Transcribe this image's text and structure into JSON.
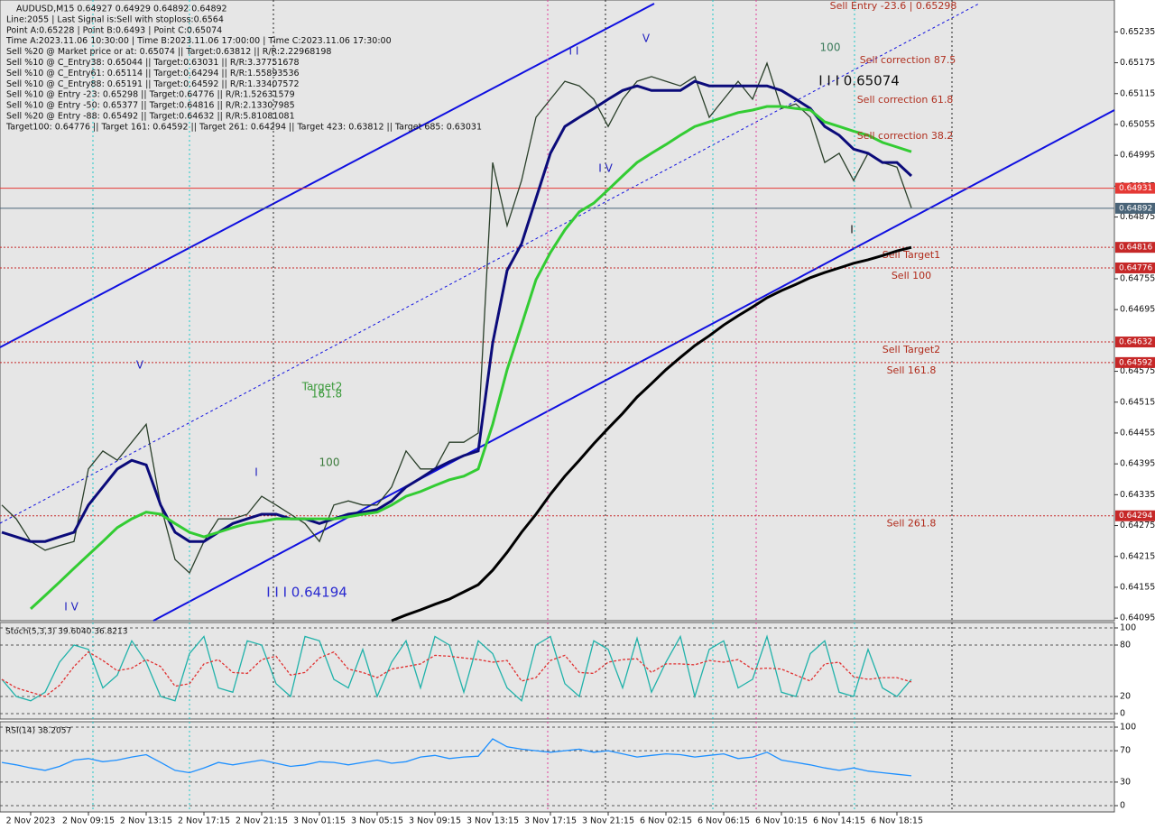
{
  "chart_data": [
    {
      "type": "line",
      "info_lines": [
        "AUDUSD,M15  0.64927 0.64929 0.64892 0.64892",
        "Line:2055 | Last Signal is:Sell with stoploss:0.6564",
        "Point A:0.65228 | Point B:0.6493 | Point C:0.65074",
        "Time A:2023.11.06 10:30:00 | Time B:2023.11.06 17:00:00 | Time C:2023.11.06 17:30:00",
        "Sell %20 @ Market price or at: 0.65074 || Target:0.63812 || R/R:2.22968198",
        "Sell %10 @ C_Entry38: 0.65044 || Target:0.63031 || R/R:3.37751678",
        "Sell %10 @ C_Entry61: 0.65114 || Target:0.64294 || R/R:1.55893536",
        "Sell %10 @ C_Entry88: 0.65191 || Target:0.64592 || R/R:1.33407572",
        "Sell %10 @ Entry -23: 0.65298 || Target:0.64776 || R/R:1.52631579",
        "Sell %10 @ Entry -50: 0.65377 || Target:0.64816 || R/R:2.13307985",
        "Sell %20 @ Entry -88: 0.65492 || Target:0.64632 || R/R:5.81081081",
        "Target100: 0.64776 || Target 161: 0.64592 || Target 261: 0.64294 || Target 423: 0.63812 || Target 685: 0.63031"
      ],
      "annotations": [
        "Sell Entry -23.6 | 0.65298",
        "Sell correction 87.5",
        "Sell correction 61.8",
        "Sell correction 38.2",
        "I I I 0.65074",
        "100",
        "I I I 0.64194",
        "Target2",
        "161.8",
        "100",
        "I I",
        "V",
        "I V",
        "V",
        "I V",
        "I",
        "I"
      ],
      "categories": [
        null,
        null,
        "2 Nov 2023",
        null,
        null,
        null,
        "2 Nov 09:15",
        null,
        null,
        null,
        "2 Nov 13:15",
        null,
        null,
        null,
        "2 Nov 17:15",
        null,
        null,
        null,
        "2 Nov 21:15",
        null,
        null,
        null,
        "3 Nov 01:15",
        null,
        null,
        null,
        "3 Nov 05:15",
        null,
        null,
        null,
        "3 Nov 09:15",
        null,
        null,
        null,
        "3 Nov 13:15",
        null,
        null,
        null,
        "3 Nov 17:15",
        null,
        null,
        null,
        "3 Nov 21:15",
        null,
        null,
        null,
        "6 Nov 02:15",
        null,
        null,
        null,
        "6 Nov 06:15",
        null,
        null,
        null,
        "6 Nov 10:15",
        null,
        null,
        null,
        "6 Nov 14:15",
        null,
        null,
        null,
        "6 Nov 18:15",
        null
      ],
      "series": [
        {
          "color": "#2a3f2a",
          "values": [
            0.64315,
            0.64288,
            0.64244,
            0.64227,
            0.64236,
            0.64244,
            0.64385,
            0.6442,
            0.64402,
            0.64437,
            0.64472,
            0.64315,
            0.64209,
            0.64183,
            0.64244,
            0.64288,
            0.64288,
            0.64297,
            0.64332,
            0.64315,
            0.64297,
            0.64279,
            0.64244,
            0.64315,
            0.64323,
            0.64315,
            0.64315,
            0.6435,
            0.6442,
            0.64385,
            0.64385,
            0.64437,
            0.64437,
            0.64455,
            0.64981,
            0.64858,
            0.64946,
            0.65069,
            0.65104,
            0.65139,
            0.6513,
            0.65104,
            0.65051,
            0.65104,
            0.65139,
            0.65148,
            0.65139,
            0.6513,
            0.65148,
            0.65069,
            0.65104,
            0.65139,
            0.65104,
            0.65174,
            0.65086,
            0.65095,
            0.65069,
            0.64981,
            0.64999,
            0.64946,
            0.64999,
            0.64981,
            0.64972,
            0.64893
          ]
        },
        {
          "color": "#0b0b7a",
          "values": [
            0.64262,
            0.64253,
            0.64244,
            0.64244,
            0.64253,
            0.64262,
            0.64315,
            0.6435,
            0.64385,
            0.64402,
            0.64393,
            0.64315,
            0.64262,
            0.64244,
            0.64244,
            0.64262,
            0.64279,
            0.64288,
            0.64297,
            0.64297,
            0.64288,
            0.64288,
            0.64279,
            0.64288,
            0.64297,
            0.64301,
            0.64306,
            0.64323,
            0.6435,
            0.64367,
            0.64385,
            0.64399,
            0.64411,
            0.6442,
            0.6463,
            0.64771,
            0.64823,
            0.64911,
            0.64999,
            0.65051,
            0.65069,
            0.65086,
            0.65104,
            0.65121,
            0.6513,
            0.65121,
            0.65121,
            0.65121,
            0.65139,
            0.6513,
            0.6513,
            0.6513,
            0.6513,
            0.6513,
            0.65121,
            0.65104,
            0.65086,
            0.65051,
            0.65034,
            0.65007,
            0.64999,
            0.64981,
            0.64981,
            0.64955
          ]
        },
        {
          "color": "#33cc33",
          "values": [
            null,
            null,
            0.64113,
            0.64139,
            0.64165,
            0.64192,
            0.64218,
            0.64244,
            0.64271,
            0.64288,
            0.64301,
            0.64297,
            0.64279,
            0.64262,
            0.64253,
            0.64262,
            0.64271,
            0.64279,
            0.64283,
            0.64288,
            0.64288,
            0.64288,
            0.64288,
            0.64288,
            0.64292,
            0.64297,
            0.64301,
            0.64315,
            0.64332,
            0.64341,
            0.64353,
            0.64364,
            0.64371,
            0.64385,
            0.64472,
            0.64578,
            0.64665,
            0.64753,
            0.64806,
            0.6485,
            0.64885,
            0.64902,
            0.64928,
            0.64955,
            0.64981,
            0.64999,
            0.65016,
            0.65034,
            0.65051,
            0.6506,
            0.65069,
            0.65078,
            0.65083,
            0.6509,
            0.6509,
            0.65086,
            0.65083,
            0.6506,
            0.65051,
            0.65042,
            0.65034,
            0.6502,
            0.65011,
            0.65002
          ]
        },
        {
          "color": "#000000",
          "values": [
            null,
            null,
            null,
            null,
            null,
            null,
            null,
            null,
            null,
            null,
            null,
            null,
            null,
            null,
            null,
            null,
            null,
            null,
            null,
            null,
            null,
            null,
            null,
            null,
            null,
            null,
            null,
            0.6409,
            0.64101,
            0.64111,
            0.64122,
            0.64132,
            0.64146,
            0.6416,
            0.64188,
            0.64223,
            0.64262,
            0.64297,
            0.64336,
            0.64371,
            0.64402,
            0.64434,
            0.64464,
            0.64493,
            0.64525,
            0.64551,
            0.64578,
            0.64602,
            0.64625,
            0.64644,
            0.64665,
            0.64683,
            0.647,
            0.64718,
            0.64732,
            0.64744,
            0.64757,
            0.64767,
            0.64776,
            0.64785,
            0.64792,
            0.648,
            0.64809,
            0.64816
          ]
        }
      ],
      "levels": [
        {
          "price": 0.64931,
          "color": "#e53935"
        },
        {
          "price": 0.64892,
          "color": "#4a6478"
        },
        {
          "price": 0.64816,
          "name": "Sell Target1",
          "color": "#c62828"
        },
        {
          "price": 0.64776,
          "name": "Sell 100",
          "color": "#c62828"
        },
        {
          "price": 0.64632,
          "name": "Sell Target2",
          "color": "#c62828"
        },
        {
          "price": 0.64592,
          "name": "Sell 161.8",
          "color": "#c62828"
        },
        {
          "price": 0.64294,
          "name": "Sell  261.8",
          "color": "#c62828"
        }
      ],
      "ylim": [
        0.6409,
        0.6529
      ],
      "yticks": [
        0.65235,
        0.65175,
        0.65115,
        0.65055,
        0.64995,
        0.64935,
        0.64875,
        0.64755,
        0.64695,
        0.64575,
        0.64515,
        0.64455,
        0.64395,
        0.64335,
        0.64275,
        0.64215,
        0.64155,
        0.64095
      ],
      "grid": false
    },
    {
      "type": "line",
      "title": "Stoch(5,3,3) 39.6040 36.8213",
      "series": [
        {
          "color": "#20b2aa",
          "values": [
            40,
            20,
            15,
            25,
            60,
            80,
            75,
            30,
            45,
            85,
            60,
            20,
            15,
            70,
            90,
            30,
            25,
            85,
            80,
            35,
            20,
            90,
            85,
            40,
            30,
            75,
            20,
            60,
            85,
            30,
            90,
            80,
            25,
            85,
            70,
            30,
            15,
            80,
            90,
            35,
            20,
            85,
            75,
            30,
            88,
            25,
            60,
            90,
            20,
            75,
            85,
            30,
            40,
            90,
            25,
            20,
            70,
            85,
            25,
            20,
            75,
            30,
            20,
            40
          ]
        },
        {
          "color": "#e03030",
          "dashed": true,
          "values": [
            40,
            30,
            25,
            20,
            33,
            55,
            72,
            62,
            50,
            53,
            63,
            55,
            32,
            35,
            58,
            63,
            48,
            47,
            63,
            67,
            45,
            48,
            65,
            72,
            52,
            48,
            42,
            52,
            55,
            58,
            68,
            67,
            65,
            63,
            60,
            62,
            38,
            42,
            62,
            68,
            48,
            47,
            60,
            63,
            64,
            48,
            58,
            58,
            57,
            62,
            60,
            63,
            52,
            53,
            52,
            45,
            38,
            58,
            60,
            43,
            40,
            42,
            42,
            37
          ]
        }
      ],
      "ylim": [
        0,
        100
      ],
      "yticks": [
        100,
        80,
        20,
        0
      ],
      "grid": true
    },
    {
      "type": "line",
      "title": "RSI(14) 38.2057",
      "series": [
        {
          "color": "#1e90ff",
          "values": [
            55,
            52,
            48,
            45,
            50,
            58,
            60,
            56,
            58,
            62,
            65,
            55,
            45,
            42,
            48,
            55,
            52,
            55,
            58,
            54,
            50,
            52,
            56,
            55,
            52,
            55,
            58,
            54,
            56,
            62,
            64,
            60,
            62,
            63,
            85,
            75,
            72,
            70,
            68,
            70,
            72,
            68,
            70,
            66,
            62,
            64,
            66,
            65,
            62,
            64,
            66,
            60,
            62,
            68,
            58,
            55,
            52,
            48,
            45,
            48,
            44,
            42,
            40,
            38
          ]
        }
      ],
      "ylim": [
        0,
        100
      ],
      "yticks": [
        100,
        70,
        30,
        0
      ],
      "grid": true
    }
  ]
}
